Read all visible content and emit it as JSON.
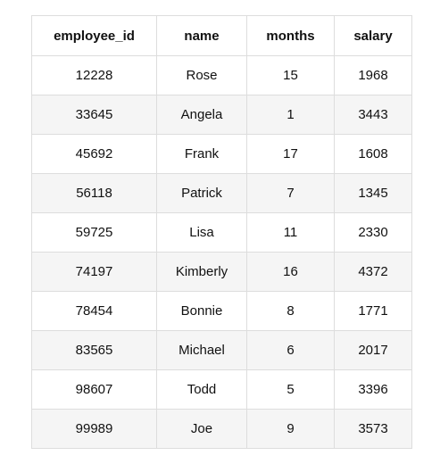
{
  "table": {
    "columns": [
      "employee_id",
      "name",
      "months",
      "salary"
    ],
    "rows": [
      [
        "12228",
        "Rose",
        "15",
        "1968"
      ],
      [
        "33645",
        "Angela",
        "1",
        "3443"
      ],
      [
        "45692",
        "Frank",
        "17",
        "1608"
      ],
      [
        "56118",
        "Patrick",
        "7",
        "1345"
      ],
      [
        "59725",
        "Lisa",
        "11",
        "2330"
      ],
      [
        "74197",
        "Kimberly",
        "16",
        "4372"
      ],
      [
        "78454",
        "Bonnie",
        "8",
        "1771"
      ],
      [
        "83565",
        "Michael",
        "6",
        "2017"
      ],
      [
        "98607",
        "Todd",
        "5",
        "3396"
      ],
      [
        "99989",
        "Joe",
        "9",
        "3573"
      ]
    ]
  },
  "colors": {
    "border": "#dddddd",
    "stripe": "#f5f5f5",
    "text": "#111111"
  }
}
